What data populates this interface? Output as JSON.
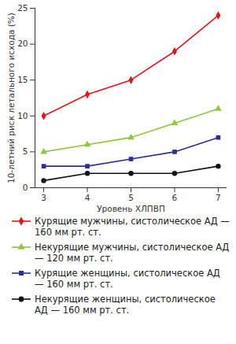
{
  "chart_data": {
    "type": "line",
    "x_label": "Уровень ХЛПВП",
    "y_label": "10-летний риск летального исхода (%)",
    "x": [
      3,
      4,
      5,
      6,
      7
    ],
    "series": [
      {
        "name": "Курящие мужчины, систолическое АД — 160 мм рт. ст.",
        "color": "#e3151c",
        "marker": "diamond",
        "line_style": "solid",
        "values": [
          10,
          13,
          15,
          19,
          24
        ]
      },
      {
        "name": "Некурящие мужчины, систолическое АД — 120 мм рт. ст.",
        "color": "#8dc63f",
        "marker": "triangle",
        "line_style": "solid",
        "values": [
          5,
          6,
          7,
          9,
          11
        ]
      },
      {
        "name": "Курящие женщины, систолическое АД — 160 мм рт. ст.",
        "color": "#2b2f8f",
        "marker": "square",
        "line_style": "solid",
        "values": [
          3,
          3,
          4,
          5,
          7
        ]
      },
      {
        "name": "Некурящие женщины, систолическое АД — 160 мм рт. ст.",
        "color": "#111111",
        "marker": "circle",
        "line_style": "solid",
        "values": [
          1,
          2,
          2,
          2,
          3
        ]
      }
    ],
    "xlim": [
      2.8,
      7.2
    ],
    "ylim": [
      0,
      25
    ],
    "xticks": [
      3,
      4,
      5,
      6,
      7
    ],
    "yticks": [
      0,
      5,
      10,
      15,
      20,
      25
    ],
    "grid": false,
    "legend": "bottom"
  }
}
